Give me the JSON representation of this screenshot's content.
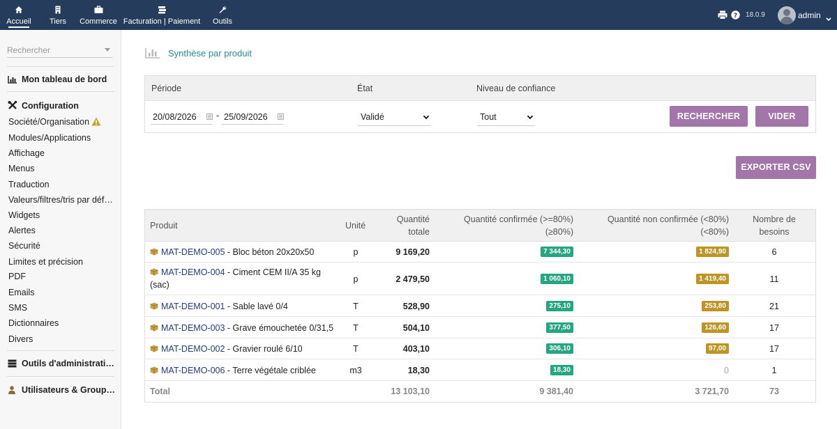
{
  "topbar": {
    "nav": [
      {
        "label": "Accueil",
        "icon": "home-icon"
      },
      {
        "label": "Tiers",
        "icon": "building-icon"
      },
      {
        "label": "Commerce",
        "icon": "briefcase-icon"
      },
      {
        "label": "Facturation | Paiement",
        "icon": "money-icon"
      },
      {
        "label": "Outils",
        "icon": "wrench-icon"
      }
    ],
    "version": "18.0.9",
    "username": "admin"
  },
  "sidebar": {
    "search_placeholder": "Rechercher",
    "dashboard": "Mon tableau de bord",
    "configuration": "Configuration",
    "items": [
      "Société/Organisation",
      "Modules/Applications",
      "Affichage",
      "Menus",
      "Traduction",
      "Valeurs/filtres/tris par déf…",
      "Widgets",
      "Alertes",
      "Sécurité",
      "Limites et précision",
      "PDF",
      "Emails",
      "SMS",
      "Dictionnaires",
      "Divers"
    ],
    "admin_tools": "Outils d'administrati…",
    "users_groups": "Utilisateurs & Group…"
  },
  "main": {
    "title": "Synthèse par produit",
    "filters": {
      "period_label": "Période",
      "state_label": "État",
      "confidence_label": "Niveau de confiance",
      "date_from": "20/08/2026",
      "date_sep": "-",
      "date_to": "25/09/2026",
      "state_value": "Validé",
      "confidence_value": "Tout",
      "search_btn": "RECHERCHER",
      "clear_btn": "VIDER"
    },
    "export_btn": "EXPORTER CSV",
    "table": {
      "headers": {
        "product": "Produit",
        "unit": "Unité",
        "qty_total_1": "Quantité",
        "qty_total_2": "totale",
        "qty_conf_1": "Quantité confirmée (>=80%)",
        "qty_conf_2": "(≥80%)",
        "qty_nonconf_1": "Quantité non confirmée (<80%)",
        "qty_nonconf_2": "(<80%)",
        "needs_1": "Nombre de",
        "needs_2": "besoins"
      },
      "rows": [
        {
          "ref": "MAT-DEMO-005",
          "label": " - Bloc béton 20x20x50",
          "label2": "",
          "unit": "p",
          "total": "9 169,20",
          "conf": "7 344,30",
          "nonconf": "1 824,90",
          "needs": "6"
        },
        {
          "ref": "MAT-DEMO-004",
          "label": " - Ciment CEM II/A 35 kg",
          "label2": "(sac)",
          "unit": "p",
          "total": "2 479,50",
          "conf": "1 060,10",
          "nonconf": "1 419,40",
          "needs": "11"
        },
        {
          "ref": "MAT-DEMO-001",
          "label": " - Sable lavé 0/4",
          "label2": "",
          "unit": "T",
          "total": "528,90",
          "conf": "275,10",
          "nonconf": "253,80",
          "needs": "21"
        },
        {
          "ref": "MAT-DEMO-003",
          "label": " - Grave émouchetée 0/31,5",
          "label2": "",
          "unit": "T",
          "total": "504,10",
          "conf": "377,50",
          "nonconf": "126,60",
          "needs": "17"
        },
        {
          "ref": "MAT-DEMO-002",
          "label": " - Gravier roulé 6/10",
          "label2": "",
          "unit": "T",
          "total": "403,10",
          "conf": "306,10",
          "nonconf": "97,00",
          "needs": "17"
        },
        {
          "ref": "MAT-DEMO-006",
          "label": " - Terre végétale criblée",
          "label2": "",
          "unit": "m3",
          "total": "18,30",
          "conf": "18,30",
          "nonconf": "0",
          "needs": "1"
        }
      ],
      "total": {
        "label": "Total",
        "total": "13 103,10",
        "conf": "9 381,40",
        "nonconf": "3 721,70",
        "needs": "73"
      }
    }
  },
  "colors": {
    "topbar": "#263c5c",
    "accent": "#a276a8",
    "green": "#25a580",
    "gold": "#bc9526",
    "title": "#258a9a"
  }
}
